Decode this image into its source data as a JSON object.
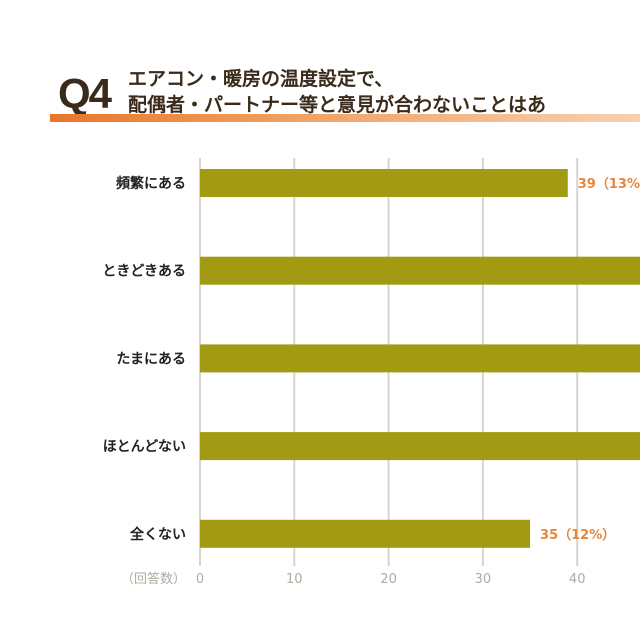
{
  "header": {
    "question_no": "Q4",
    "title_line1": "エアコン・暖房の温度設定で、",
    "title_line2": "配偶者・パートナー等と意見が合わないことはあ"
  },
  "chart_data": {
    "type": "bar",
    "orientation": "horizontal",
    "categories": [
      "頻繁にある",
      "ときどきある",
      "たまにある",
      "ほとんどない",
      "全くない"
    ],
    "values": [
      39,
      null,
      null,
      null,
      35
    ],
    "data_labels": [
      "39（13%）",
      "",
      "",
      "",
      "35（12%）"
    ],
    "xlabel": "（回答数）",
    "x_ticks": [
      "0",
      "10",
      "20",
      "30",
      "40"
    ],
    "xlim": [
      0,
      46
    ],
    "grid": true,
    "colors": {
      "bar": "#a19a12",
      "label": "#e8863a",
      "grid": "#d8d4cc",
      "tick": "#b0aaa0"
    }
  }
}
